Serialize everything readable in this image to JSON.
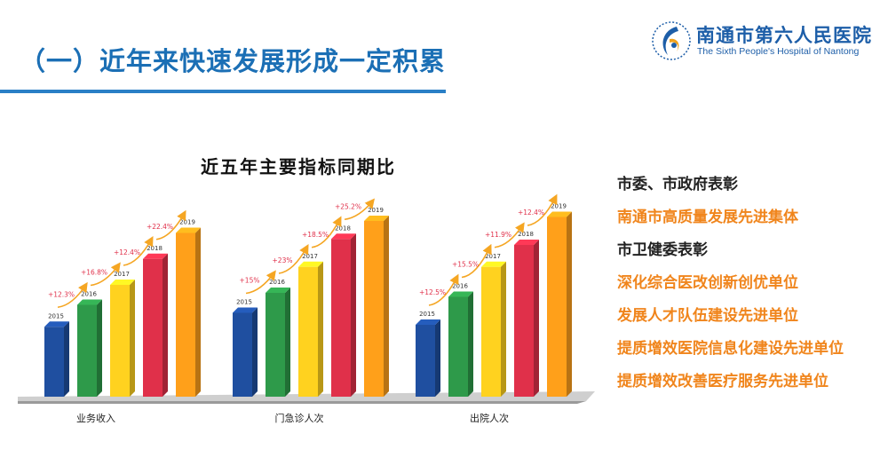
{
  "page": {
    "title": "（一）近年来快速发展形成一定积累"
  },
  "logo": {
    "name_cn": "南通市第六人民医院",
    "name_en": "The Sixth People's Hospital of Nantong",
    "icon": "hospital-logo-icon"
  },
  "chart_data": {
    "type": "bar",
    "title": "近五年主要指标同期比",
    "categories": [
      "业务收入",
      "门急诊人次",
      "出院人次"
    ],
    "series_labels": [
      "2015",
      "2016",
      "2017",
      "2018",
      "2019"
    ],
    "series_colors": [
      "#1f4fa0",
      "#2e9a4a",
      "#ffd21f",
      "#e0304a",
      "#ffa01a"
    ],
    "relative_heights": [
      [
        0.35,
        0.46,
        0.56,
        0.69,
        0.82
      ],
      [
        0.42,
        0.52,
        0.65,
        0.79,
        0.88
      ],
      [
        0.36,
        0.5,
        0.65,
        0.76,
        0.9
      ]
    ],
    "growth_labels": [
      [
        "+12.3%",
        "+16.8%",
        "+12.4%",
        "+22.4%"
      ],
      [
        "+15%",
        "+23%",
        "+18.5%",
        "+25.2%"
      ],
      [
        "+12.5%",
        "+15.5%",
        "+11.9%",
        "+12.4%"
      ]
    ],
    "axis_labels": "none",
    "legend": "none",
    "grid": false
  },
  "awards": [
    {
      "text": "市委、市政府表彰",
      "color": "black"
    },
    {
      "text": "南通市高质量发展先进集体",
      "color": "orange"
    },
    {
      "text": "市卫健委表彰",
      "color": "black"
    },
    {
      "text": "深化综合医改创新创优单位",
      "color": "orange"
    },
    {
      "text": "发展人才队伍建设先进单位",
      "color": "orange"
    },
    {
      "text": "提质增效医院信息化建设先进单位",
      "color": "orange"
    },
    {
      "text": "提质增效改善医疗服务先进单位",
      "color": "orange"
    }
  ]
}
